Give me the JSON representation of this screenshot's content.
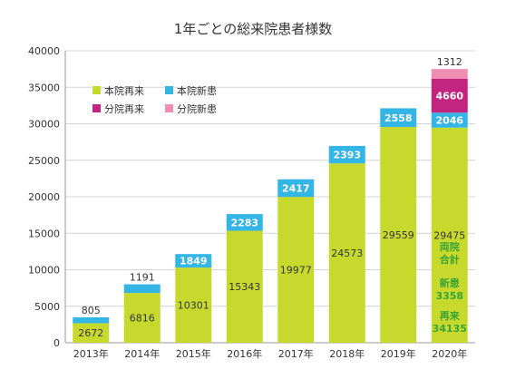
{
  "chart_data": {
    "type": "bar",
    "stacked": true,
    "title": "1年ごとの総来院患者様数",
    "categories": [
      "2013年",
      "2014年",
      "2015年",
      "2016年",
      "2017年",
      "2018年",
      "2019年",
      "2020年"
    ],
    "series": [
      {
        "name": "本院再来",
        "color": "#c8d92e",
        "values": [
          2672,
          6816,
          10301,
          15343,
          19977,
          24573,
          29559,
          29475
        ]
      },
      {
        "name": "本院新患",
        "color": "#33b5e5",
        "values": [
          805,
          1191,
          1849,
          2283,
          2417,
          2393,
          2558,
          2046
        ]
      },
      {
        "name": "分院再来",
        "color": "#c2257f",
        "values": [
          0,
          0,
          0,
          0,
          0,
          0,
          0,
          4660
        ]
      },
      {
        "name": "分院新患",
        "color": "#ee8fb1",
        "values": [
          0,
          0,
          0,
          0,
          0,
          0,
          0,
          1312
        ]
      }
    ],
    "ylim": [
      0,
      40000
    ],
    "yticks": [
      0,
      5000,
      10000,
      15000,
      20000,
      25000,
      30000,
      35000,
      40000
    ],
    "grid": true,
    "legend_position": "top-left",
    "annotation": {
      "heading_line1": "両院",
      "heading_line2": "合計",
      "new_label": "新患",
      "new_value": "3358",
      "return_label": "再来",
      "return_value": "34135",
      "color": "#3aa335"
    }
  }
}
